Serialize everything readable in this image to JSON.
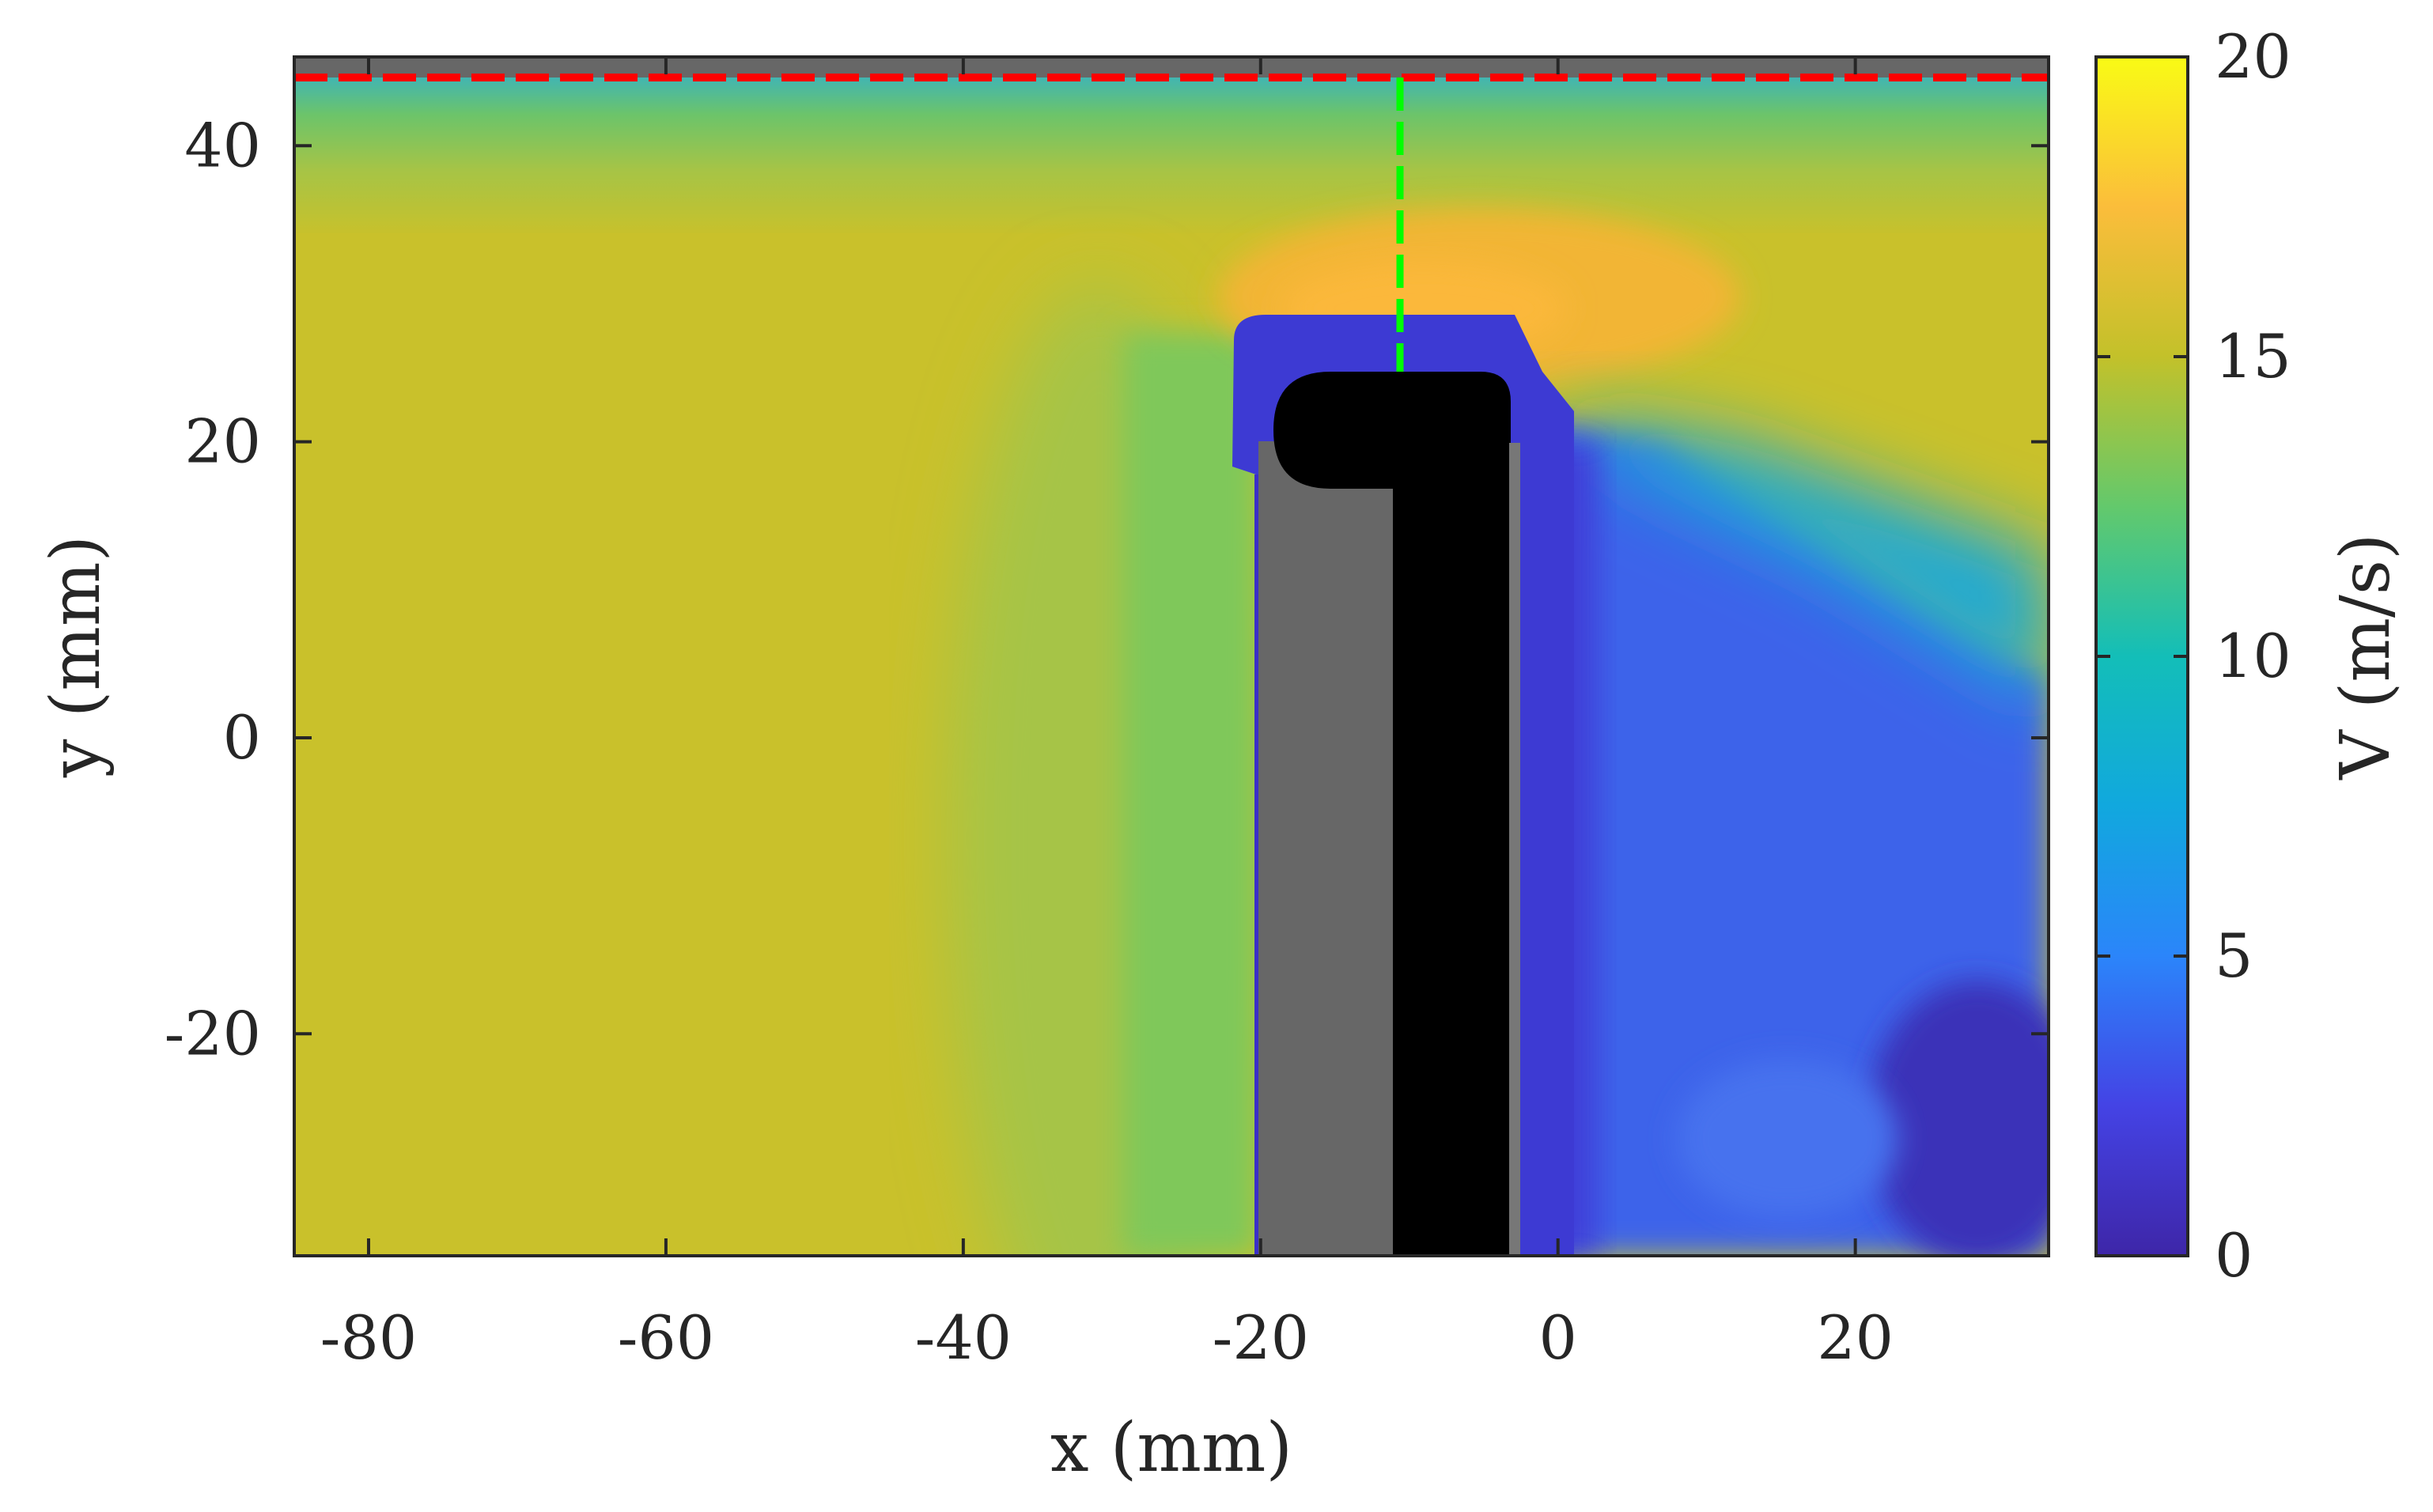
{
  "chart_data": {
    "type": "heatmap",
    "title": "",
    "xlabel": "x (mm)",
    "ylabel": "y (mm)",
    "xlim": [
      -85,
      33
    ],
    "ylim": [
      -35,
      46
    ],
    "x_ticks": [
      -80,
      -60,
      -40,
      -20,
      0,
      20
    ],
    "y_ticks": [
      -20,
      0,
      20,
      40
    ],
    "x_tick_labels": [
      "-80",
      "-60",
      "-40",
      "-20",
      "0",
      "20"
    ],
    "y_tick_labels": [
      "-20",
      "0",
      "20",
      "40"
    ],
    "colorbar": {
      "label": "V (m/s)",
      "range": [
        0,
        20
      ],
      "ticks": [
        0,
        5,
        10,
        15,
        20
      ],
      "tick_labels": [
        "0",
        "5",
        "10",
        "15",
        "20"
      ],
      "colormap": "parula"
    },
    "field_regions": [
      {
        "region": "free stream, left of body",
        "approx_V": 15.5
      },
      {
        "region": "boundary layer near top wall",
        "approx_V": 12
      },
      {
        "region": "accelerated flow above body",
        "approx_V": 17
      },
      {
        "region": "wake right of body",
        "approx_V": 2.5
      },
      {
        "region": "recirculation above body",
        "approx_V": 1
      }
    ],
    "body": {
      "x_left": -19.5,
      "x_right": -3,
      "y_top": 25,
      "y_bottom": -35,
      "shadow_x_right": -10.5,
      "shadow_y_top": 17
    },
    "reference_lines": [
      {
        "orientation": "horizontal",
        "y": 44.5,
        "x_from": -85,
        "x_to": 33,
        "color": "#ff0000",
        "style": "dashed"
      },
      {
        "orientation": "vertical",
        "x": -10,
        "y_from": 25,
        "y_to": 44.5,
        "color": "#00ff00",
        "style": "dashed"
      }
    ],
    "masked_strip_top": {
      "y_from": 44.5,
      "y_to": 46,
      "color": "#676767"
    }
  }
}
